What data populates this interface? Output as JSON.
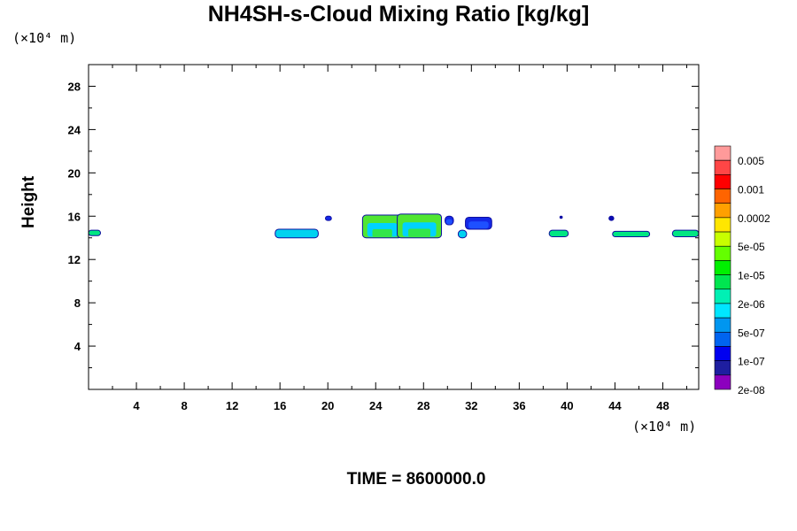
{
  "chart_data": {
    "type": "heatmap",
    "title": "NH4SH-s-Cloud Mixing Ratio [kg/kg]",
    "ylabel": "Height",
    "x_unit_label": "(×10⁴ m)",
    "y_unit_label": "(×10⁴ m)",
    "footer": "TIME = 8600000.0",
    "xlim": [
      0,
      51
    ],
    "ylim": [
      0,
      30
    ],
    "x_ticks": [
      4,
      8,
      12,
      16,
      20,
      24,
      28,
      32,
      36,
      40,
      44,
      48
    ],
    "y_ticks": [
      4,
      8,
      12,
      16,
      20,
      24,
      28
    ],
    "colorbar": {
      "labels": [
        "0.005",
        "0.001",
        "0.0002",
        "5e-05",
        "1e-05",
        "2e-06",
        "5e-07",
        "1e-07",
        "2e-08"
      ],
      "colors": [
        "#ff9a9a",
        "#ff4646",
        "#ff0000",
        "#ff6400",
        "#ffa000",
        "#ffe600",
        "#c8ff00",
        "#64ff00",
        "#00f000",
        "#00e650",
        "#00f0b4",
        "#00e6ff",
        "#0096f0",
        "#0064f0",
        "#0000f0",
        "#1e1ea0",
        "#8c00be"
      ]
    },
    "cloud_patches": [
      {
        "x": [
          0,
          1.0
        ],
        "y": [
          14.2,
          14.7
        ],
        "level": "2e-06"
      },
      {
        "x": [
          15.6,
          19.2
        ],
        "y": [
          14.0,
          14.8
        ],
        "level": "5e-07"
      },
      {
        "x": [
          19.8,
          20.3
        ],
        "y": [
          15.6,
          16.0
        ],
        "level": "1e-07"
      },
      {
        "x": [
          22.9,
          26.2
        ],
        "y": [
          14.0,
          16.1
        ],
        "level": "1e-05"
      },
      {
        "x": [
          25.8,
          29.5
        ],
        "y": [
          14.0,
          16.2
        ],
        "level": "1e-05"
      },
      {
        "x": [
          29.8,
          30.5
        ],
        "y": [
          15.2,
          16.0
        ],
        "level": "1e-07"
      },
      {
        "x": [
          30.9,
          31.6
        ],
        "y": [
          14.0,
          14.7
        ],
        "level": "5e-07"
      },
      {
        "x": [
          31.5,
          33.7
        ],
        "y": [
          14.8,
          15.9
        ],
        "level": "1e-07"
      },
      {
        "x": [
          38.5,
          40.1
        ],
        "y": [
          14.1,
          14.7
        ],
        "level": "2e-06"
      },
      {
        "x": [
          39.4,
          39.6
        ],
        "y": [
          15.8,
          16.0
        ],
        "level": "2e-08"
      },
      {
        "x": [
          43.5,
          43.9
        ],
        "y": [
          15.6,
          16.0
        ],
        "level": "2e-08"
      },
      {
        "x": [
          43.8,
          46.9
        ],
        "y": [
          14.1,
          14.6
        ],
        "level": "2e-06"
      },
      {
        "x": [
          48.8,
          51.0
        ],
        "y": [
          14.1,
          14.7
        ],
        "level": "2e-06"
      }
    ]
  }
}
